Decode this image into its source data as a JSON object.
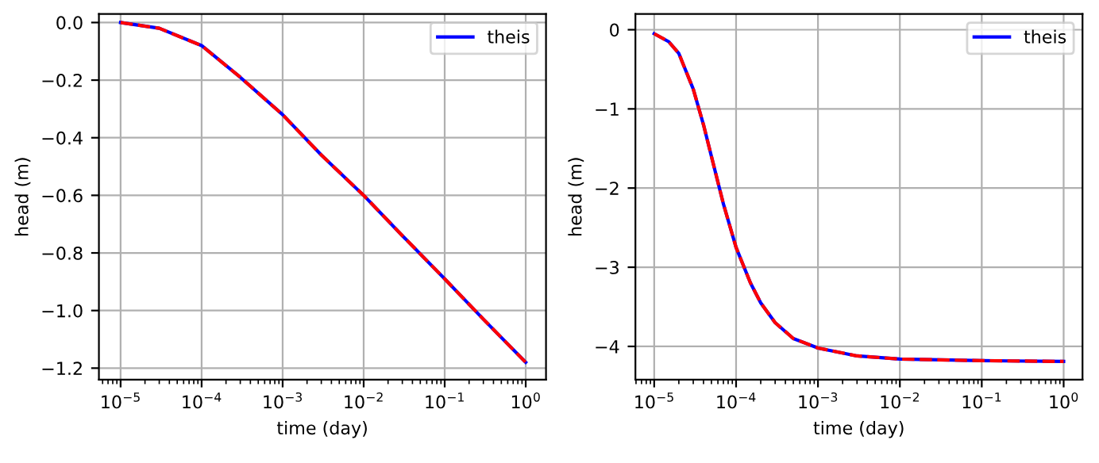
{
  "chart_data": [
    {
      "type": "line",
      "xlabel": "time (day)",
      "ylabel": "head (m)",
      "log": "x",
      "grid": true,
      "legend": "top right",
      "xlim": [
        5.4e-06,
        1.78
      ],
      "ylim": [
        -1.24,
        0.03
      ],
      "xticks": [
        {
          "value": 1e-05,
          "label": "10$^{−5}$"
        },
        {
          "value": 0.0001,
          "label": "10$^{−4}$"
        },
        {
          "value": 0.001,
          "label": "10$^{−3}$"
        },
        {
          "value": 0.01,
          "label": "10$^{−2}$"
        },
        {
          "value": 0.1,
          "label": "10$^{−1}$"
        },
        {
          "value": 1,
          "label": "10$^{0}$"
        }
      ],
      "yticks": [
        {
          "value": 0,
          "label": "0.0"
        },
        {
          "value": -0.2,
          "label": "−0.2"
        },
        {
          "value": -0.4,
          "label": "−0.4"
        },
        {
          "value": -0.6,
          "label": "−0.6"
        },
        {
          "value": -0.8,
          "label": "−0.8"
        },
        {
          "value": -1.0,
          "label": "−1.0"
        },
        {
          "value": -1.2,
          "label": "−1.2"
        }
      ],
      "x": [
        1e-05,
        3e-05,
        0.0001,
        0.0003,
        0.001,
        0.003,
        0.01,
        0.03,
        0.1,
        0.3,
        1
      ],
      "series": [
        {
          "name": "theis",
          "color": "#0000ff",
          "line_style": "solid",
          "values": [
            0.0,
            -0.02,
            -0.08,
            -0.19,
            -0.32,
            -0.46,
            -0.6,
            -0.74,
            -0.89,
            -1.03,
            -1.18
          ]
        },
        {
          "color": "#ff0000",
          "line_style": "dashed",
          "values": [
            0.0,
            -0.02,
            -0.08,
            -0.19,
            -0.32,
            -0.46,
            -0.6,
            -0.74,
            -0.89,
            -1.03,
            -1.18
          ]
        }
      ]
    },
    {
      "type": "line",
      "xlabel": "time (day)",
      "ylabel": "head (m)",
      "log": "x",
      "grid": true,
      "legend": "top right",
      "xlim": [
        5.9e-06,
        1.7
      ],
      "ylim": [
        -4.42,
        0.2
      ],
      "xticks": [
        {
          "value": 1e-05,
          "label": "10$^{−5}$"
        },
        {
          "value": 0.0001,
          "label": "10$^{−4}$"
        },
        {
          "value": 0.001,
          "label": "10$^{−3}$"
        },
        {
          "value": 0.01,
          "label": "10$^{−2}$"
        },
        {
          "value": 0.1,
          "label": "10$^{−1}$"
        },
        {
          "value": 1,
          "label": "10$^{0}$"
        }
      ],
      "yticks": [
        {
          "value": 0,
          "label": "0"
        },
        {
          "value": -1,
          "label": "−1"
        },
        {
          "value": -2,
          "label": "−2"
        },
        {
          "value": -3,
          "label": "−3"
        },
        {
          "value": -4,
          "label": "−4"
        }
      ],
      "x": [
        1e-05,
        1.5e-05,
        2e-05,
        3e-05,
        4e-05,
        5e-05,
        7e-05,
        0.0001,
        0.00015,
        0.0002,
        0.0003,
        0.0005,
        0.001,
        0.003,
        0.01,
        0.1,
        1
      ],
      "series": [
        {
          "name": "theis",
          "color": "#0000ff",
          "line_style": "solid",
          "values": [
            -0.05,
            -0.15,
            -0.3,
            -0.75,
            -1.2,
            -1.6,
            -2.2,
            -2.75,
            -3.2,
            -3.45,
            -3.7,
            -3.9,
            -4.02,
            -4.12,
            -4.16,
            -4.18,
            -4.19
          ]
        },
        {
          "color": "#ff0000",
          "line_style": "dashed",
          "values": [
            -0.05,
            -0.15,
            -0.3,
            -0.75,
            -1.2,
            -1.6,
            -2.2,
            -2.75,
            -3.2,
            -3.45,
            -3.7,
            -3.9,
            -4.02,
            -4.12,
            -4.16,
            -4.18,
            -4.19
          ]
        }
      ]
    }
  ]
}
